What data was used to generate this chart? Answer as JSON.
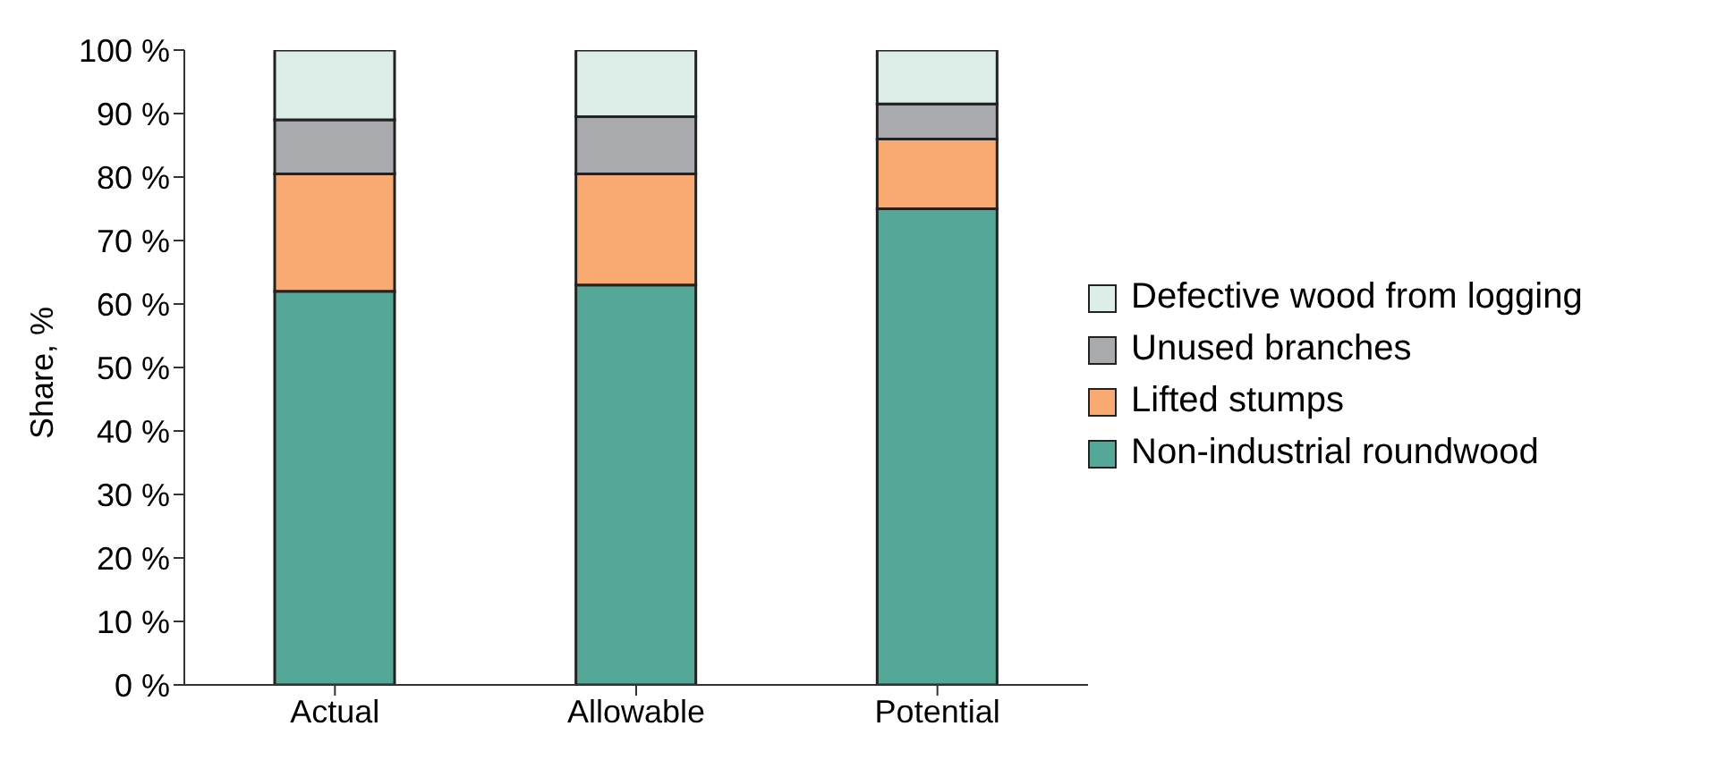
{
  "chart_data": {
    "type": "bar",
    "stacked": true,
    "ylabel": "Share, %",
    "categories": [
      "Actual",
      "Allowable",
      "Potential"
    ],
    "series": [
      {
        "name": "Non-industrial roundwood",
        "color": "#55a898",
        "values": [
          62,
          63,
          75
        ]
      },
      {
        "name": "Lifted stumps",
        "color": "#f8aa72",
        "values": [
          18.5,
          17.5,
          11
        ]
      },
      {
        "name": "Unused branches",
        "color": "#a9aaae",
        "values": [
          8.5,
          9,
          5.5
        ]
      },
      {
        "name": "Defective wood from logging",
        "color": "#ddede7",
        "values": [
          11,
          10.5,
          8.5
        ]
      }
    ],
    "ylim": [
      0,
      100
    ],
    "yticks": [
      {
        "value": 0,
        "label": "0 %"
      },
      {
        "value": 10,
        "label": "10 %"
      },
      {
        "value": 20,
        "label": "20 %"
      },
      {
        "value": 30,
        "label": "30 %"
      },
      {
        "value": 40,
        "label": "40 %"
      },
      {
        "value": 50,
        "label": "50 %"
      },
      {
        "value": 60,
        "label": "60 %"
      },
      {
        "value": 70,
        "label": "70 %"
      },
      {
        "value": 80,
        "label": "80 %"
      },
      {
        "value": 90,
        "label": "90 %"
      },
      {
        "value": 100,
        "label": "100 %"
      }
    ],
    "grid": false,
    "legend": "right"
  }
}
